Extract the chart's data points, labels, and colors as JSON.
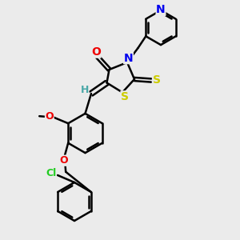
{
  "background_color": "#ebebeb",
  "atom_colors": {
    "C": "#000000",
    "H": "#4aa8a8",
    "N": "#0000ee",
    "O": "#ee0000",
    "S": "#cccc00",
    "Cl": "#22cc22"
  },
  "bond_color": "#000000",
  "bond_width": 1.8,
  "figsize": [
    3.0,
    3.0
  ],
  "dpi": 100
}
